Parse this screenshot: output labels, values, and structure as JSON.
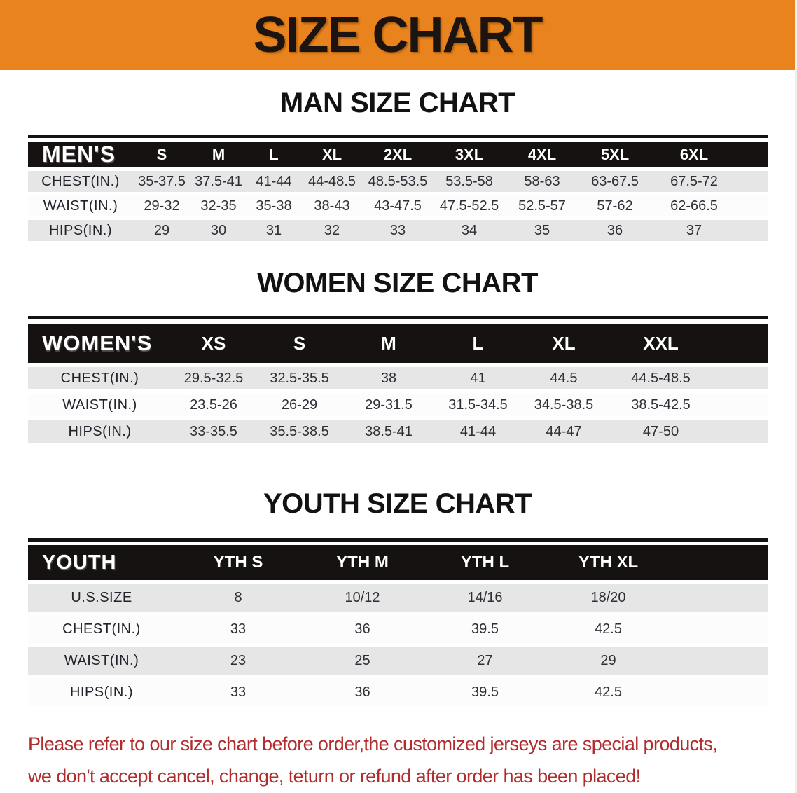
{
  "banner": {
    "title": "SIZE CHART",
    "bg_color": "#e8831e"
  },
  "sections": [
    {
      "heading": "MAN SIZE CHART",
      "table": {
        "header": [
          "MEN'S",
          "S",
          "M",
          "L",
          "XL",
          "2XL",
          "3XL",
          "4XL",
          "5XL",
          "6XL"
        ],
        "rows": [
          {
            "label": "CHEST(IN.)",
            "values": [
              "35-37.5",
              "37.5-41",
              "41-44",
              "44-48.5",
              "48.5-53.5",
              "53.5-58",
              "58-63",
              "63-67.5",
              "67.5-72"
            ]
          },
          {
            "label": "WAIST(IN.)",
            "values": [
              "29-32",
              "32-35",
              "35-38",
              "38-43",
              "43-47.5",
              "47.5-52.5",
              "52.5-57",
              "57-62",
              "62-66.5"
            ]
          },
          {
            "label": "HIPS(IN.)",
            "values": [
              "29",
              "30",
              "31",
              "32",
              "33",
              "34",
              "35",
              "36",
              "37"
            ]
          }
        ]
      }
    },
    {
      "heading": "WOMEN SIZE CHART",
      "table": {
        "header": [
          "WOMEN'S",
          "XS",
          "S",
          "M",
          "L",
          "XL",
          "XXL"
        ],
        "rows": [
          {
            "label": "CHEST(IN.)",
            "values": [
              "29.5-32.5",
              "32.5-35.5",
              "38",
              "41",
              "44.5",
              "44.5-48.5"
            ]
          },
          {
            "label": "WAIST(IN.)",
            "values": [
              "23.5-26",
              "26-29",
              "29-31.5",
              "31.5-34.5",
              "34.5-38.5",
              "38.5-42.5"
            ]
          },
          {
            "label": "HIPS(IN.)",
            "values": [
              "33-35.5",
              "35.5-38.5",
              "38.5-41",
              "41-44",
              "44-47",
              "47-50"
            ]
          }
        ]
      }
    },
    {
      "heading": "YOUTH SIZE CHART",
      "table": {
        "header": [
          "YOUTH",
          "YTH S",
          "YTH M",
          "YTH L",
          "YTH XL"
        ],
        "rows": [
          {
            "label": "U.S.SIZE",
            "values": [
              "8",
              "10/12",
              "14/16",
              "18/20"
            ]
          },
          {
            "label": "CHEST(IN.)",
            "values": [
              "33",
              "36",
              "39.5",
              "42.5"
            ]
          },
          {
            "label": "WAIST(IN.)",
            "values": [
              "23",
              "25",
              "27",
              "29"
            ]
          },
          {
            "label": "HIPS(IN.)",
            "values": [
              "33",
              "36",
              "39.5",
              "42.5"
            ]
          }
        ]
      }
    }
  ],
  "footer": {
    "line1": "Please refer to our size chart before order,the customized jerseys are special products,",
    "line2": "we don't accept cancel, change, teturn or refund after order has been placed!",
    "text_color": "#b12c2d"
  }
}
